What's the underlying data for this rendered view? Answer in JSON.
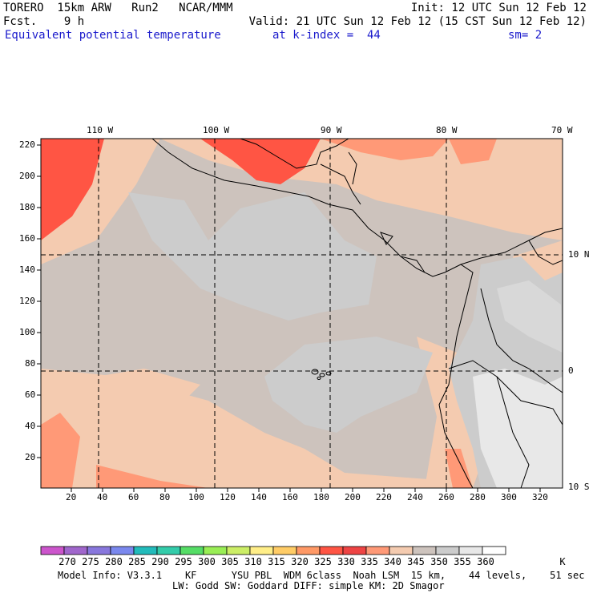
{
  "header": {
    "run_title": "TORERO  15km ARW   Run2   NCAR/MMM",
    "forecast": "Fcst.    9 h",
    "init": "Init: 12 UTC Sun 12 Feb 12",
    "valid": "Valid: 21 UTC Sun 12 Feb 12 (15 CST Sun 12 Feb 12)",
    "field": "Equivalent potential temperature",
    "level": "at k-index =  44",
    "smoothing": "sm= 2"
  },
  "map": {
    "lon_labels": [
      "110 W",
      "100 W",
      "90 W",
      "80 W",
      "70 W"
    ],
    "lat_labels": [
      "10 N",
      "0",
      "10 S"
    ],
    "y_ticks": [
      "220",
      "200",
      "180",
      "160",
      "140",
      "120",
      "100",
      "80",
      "60",
      "40",
      "20"
    ],
    "x_ticks": [
      "20",
      "40",
      "60",
      "80",
      "100",
      "120",
      "140",
      "160",
      "180",
      "200",
      "220",
      "240",
      "260",
      "280",
      "300",
      "320"
    ]
  },
  "colorbar": {
    "labels": [
      "270",
      "275",
      "280",
      "285",
      "290",
      "295",
      "300",
      "305",
      "310",
      "315",
      "320",
      "325",
      "330",
      "335",
      "340",
      "345",
      "350",
      "355",
      "360"
    ],
    "unit": "K",
    "colors": [
      "#cc55cc",
      "#a066cc",
      "#8877dd",
      "#7a88ee",
      "#22bbbb",
      "#33ccaa",
      "#55dd66",
      "#99ee55",
      "#ccee66",
      "#ffee88",
      "#ffcc66",
      "#ff9966",
      "#ff5544",
      "#ee4444",
      "#ff9977",
      "#f4cbb0",
      "#cdc3bd",
      "#cccccc",
      "#e8e8e8",
      "#ffffff"
    ]
  },
  "footer": {
    "line1": "Model Info: V3.3.1    KF      YSU PBL  WDM 6class  Noah LSM  15 km,    44 levels,    51 sec",
    "line2": "LW: Godd SW: Goddard DIFF: simple KM: 2D Smagor"
  }
}
